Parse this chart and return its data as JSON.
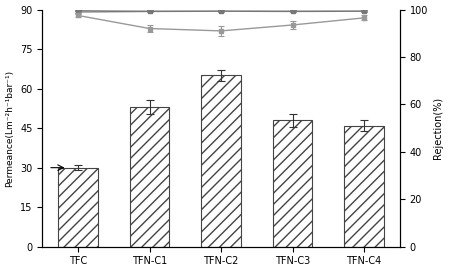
{
  "categories": [
    "TFC",
    "TFN-C1",
    "TFN-C2",
    "TFN-C3",
    "TFN-C4"
  ],
  "bar_values": [
    30,
    53,
    65,
    48,
    46
  ],
  "bar_errors": [
    1.0,
    2.5,
    2.0,
    2.5,
    2.0
  ],
  "bar_hatch": "///",
  "ylim_left": [
    0,
    90
  ],
  "yticks_left": [
    0,
    15,
    30,
    45,
    60,
    75,
    90
  ],
  "ylabel_left": "Permeance(Lm⁻²h⁻¹bar⁻¹)",
  "ylabel_right": "Rejection(%)",
  "ylim_right": [
    0,
    100
  ],
  "yticks_right": [
    0,
    20,
    40,
    60,
    80,
    100
  ],
  "line1_values": [
    99.8,
    100.0,
    100.0,
    100.0,
    100.0
  ],
  "line1_errors": [
    0.2,
    0.2,
    0.2,
    0.2,
    0.2
  ],
  "line2_values": [
    99.0,
    99.2,
    99.3,
    99.2,
    99.3
  ],
  "line2_errors": [
    0.3,
    0.3,
    0.3,
    0.3,
    0.3
  ],
  "line3_values": [
    97.5,
    92.0,
    91.0,
    93.5,
    96.5
  ],
  "line3_errors": [
    0.5,
    1.5,
    2.0,
    1.5,
    1.0
  ],
  "x_positions": [
    0,
    1,
    2,
    3,
    4
  ],
  "background": "#ffffff"
}
